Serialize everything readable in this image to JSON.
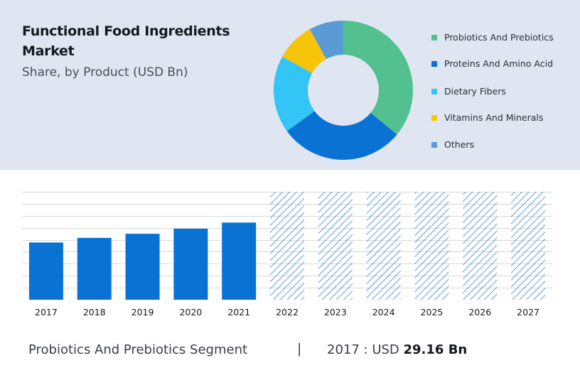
{
  "header": {
    "title": "Functional Food Ingredients Market",
    "subtitle": "Share, by Product (USD Bn)"
  },
  "colors": {
    "panel_bg": "#dfe6f1",
    "bar": "#0a72d3",
    "hatch": "#1a78c9",
    "grid": "#d9d9d9"
  },
  "legend": [
    {
      "label": "Probiotics And Prebiotics",
      "color": "#52c08f"
    },
    {
      "label": "Proteins And Amino Acid",
      "color": "#0a72d3"
    },
    {
      "label": "Dietary Fibers",
      "color": "#33c5f5"
    },
    {
      "label": "Vitamins And Minerals",
      "color": "#f7c40a"
    },
    {
      "label": "Others",
      "color": "#5b9bd5"
    }
  ],
  "chart_data": [
    {
      "type": "pie",
      "donut": true,
      "categories": [
        "Probiotics And Prebiotics",
        "Proteins And Amino Acid",
        "Dietary Fibers",
        "Vitamins And Minerals",
        "Others"
      ],
      "values": [
        36,
        29,
        18,
        9,
        8
      ],
      "colors": [
        "#52c08f",
        "#0a72d3",
        "#33c5f5",
        "#f7c40a",
        "#5b9bd5"
      ],
      "legend": "right"
    },
    {
      "type": "bar",
      "categories": [
        "2017",
        "2018",
        "2019",
        "2020",
        "2021",
        "2022",
        "2023",
        "2024",
        "2025",
        "2026",
        "2027"
      ],
      "values": [
        29.16,
        31.5,
        33.6,
        36.2,
        39.3,
        null,
        null,
        null,
        null,
        null,
        null
      ],
      "forecast": [
        false,
        false,
        false,
        false,
        false,
        true,
        true,
        true,
        true,
        true,
        true
      ],
      "ylim": [
        0,
        55
      ],
      "grid": true
    }
  ],
  "footer": {
    "segment": "Probiotics And Prebiotics Segment",
    "separator": "|",
    "year_label": "2017 : USD ",
    "value": "29.16 Bn"
  }
}
